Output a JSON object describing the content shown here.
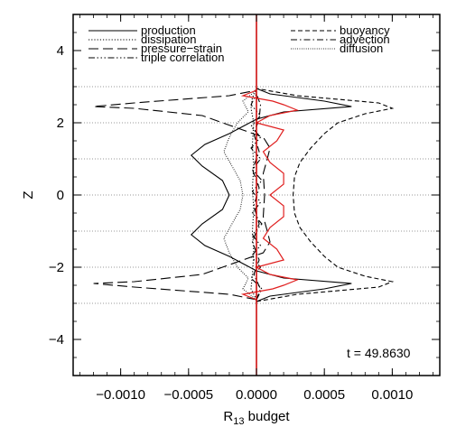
{
  "chart_data": {
    "type": "line",
    "xlabel_main": "R",
    "xlabel_sub": "13",
    "xlabel_rest": " budget",
    "ylabel": "Z",
    "xlim": [
      -0.00135,
      0.00135
    ],
    "ylim": [
      -5,
      5
    ],
    "xticks": [
      -0.001,
      -0.0005,
      0.0,
      0.0005,
      0.001
    ],
    "xtick_labels": [
      "−0.0010",
      "−0.0005",
      "0.0000",
      "0.0005",
      "0.0010"
    ],
    "yticks": [
      -4,
      -2,
      0,
      2,
      4
    ],
    "ytick_labels": [
      "−4",
      "−2",
      "0",
      "2",
      "4"
    ],
    "horizontal_dotted_gridlines_at_z": [
      -3,
      -2,
      -1,
      0,
      1,
      2,
      3
    ],
    "vertical_reference_line": {
      "x": 0.0,
      "color": "#cc0000"
    },
    "annotation": "t = 49.8630",
    "legend_left": [
      "production",
      "dissipation",
      "pressure−strain",
      "triple correlation"
    ],
    "legend_right": [
      "buoyancy",
      "advection",
      "diffusion"
    ],
    "series": [
      {
        "name": "production",
        "style": "solid",
        "color": "#000000",
        "z": [
          -2.95,
          -2.8,
          -2.6,
          -2.45,
          -2.3,
          -2.1,
          -1.9,
          -1.7,
          -1.4,
          -1.1,
          -0.8,
          -0.4,
          0,
          0.4,
          0.8,
          1.1,
          1.4,
          1.7,
          1.9,
          2.1,
          2.3,
          2.45,
          2.6,
          2.8,
          2.95
        ],
        "x": [
          0.0,
          0.0001,
          0.0005,
          0.0007,
          0.0002,
          0.0,
          -0.0001,
          -0.0002,
          -0.00038,
          -0.00048,
          -0.0004,
          -0.00025,
          -0.0002,
          -0.00025,
          -0.0004,
          -0.00048,
          -0.00038,
          -0.0002,
          -0.0001,
          0.0,
          0.0002,
          0.0007,
          0.0005,
          0.0001,
          0.0
        ]
      },
      {
        "name": "dissipation",
        "style": "dotted",
        "color": "#000000",
        "z": [
          -2.9,
          -2.6,
          -2.2,
          -1.6,
          -1.0,
          -0.4,
          0.2,
          0.8,
          1.4,
          2.0,
          2.4,
          2.7,
          2.9
        ],
        "x": [
          0.0,
          -4e-05,
          -3e-05,
          -2e-05,
          -3e-05,
          -2e-05,
          -3e-05,
          -2e-05,
          -3e-05,
          -2e-05,
          -4e-05,
          -3e-05,
          0.0
        ]
      },
      {
        "name": "pressure−strain",
        "style": "longdash",
        "color": "#000000",
        "z": [
          -2.9,
          -2.75,
          -2.55,
          -2.45,
          -2.4,
          -2.2,
          -2.0,
          -1.8,
          -1.6,
          -1.3,
          -1.0,
          -0.6,
          0,
          0.6,
          1.0,
          1.3,
          1.6,
          1.8,
          2.0,
          2.2,
          2.4,
          2.45,
          2.55,
          2.75,
          2.9
        ],
        "x": [
          0.0,
          -0.0002,
          -0.0009,
          -0.0012,
          -0.0009,
          -0.0004,
          -0.00025,
          -0.0001,
          5e-05,
          0.0001,
          8e-05,
          5e-05,
          6e-05,
          5e-05,
          8e-05,
          0.0001,
          5e-05,
          -0.0001,
          -0.00025,
          -0.0004,
          -0.0009,
          -0.0012,
          -0.0009,
          -0.0002,
          0.0
        ]
      },
      {
        "name": "triple correlation",
        "style": "dashdotdotdot",
        "color": "#000000",
        "z": [
          -2.9,
          -2.6,
          -2.3,
          -2.0,
          -1.7,
          -1.4,
          -1.1,
          -0.8,
          -0.5,
          -0.2,
          0.1,
          0.4,
          0.7,
          1.0,
          1.3,
          1.6,
          1.9,
          2.2,
          2.5,
          2.8
        ],
        "x": [
          0.0,
          4e-05,
          -4e-05,
          3e-05,
          -4e-05,
          3e-05,
          -3e-05,
          4e-05,
          -3e-05,
          3e-05,
          -3e-05,
          4e-05,
          -3e-05,
          3e-05,
          -4e-05,
          3e-05,
          -4e-05,
          3e-05,
          -4e-05,
          0.0
        ]
      },
      {
        "name": "buoyancy",
        "style": "shortdash",
        "color": "#000000",
        "z": [
          -2.95,
          -2.75,
          -2.55,
          -2.4,
          -2.25,
          -2.0,
          -1.7,
          -1.3,
          -0.9,
          -0.5,
          0,
          0.5,
          0.9,
          1.3,
          1.7,
          2.0,
          2.25,
          2.4,
          2.55,
          2.75,
          2.95
        ],
        "x": [
          0.0,
          0.0003,
          0.0009,
          0.001,
          0.0008,
          0.0006,
          0.0005,
          0.0004,
          0.00032,
          0.00028,
          0.00027,
          0.00028,
          0.00032,
          0.0004,
          0.0005,
          0.0006,
          0.0008,
          0.001,
          0.0009,
          0.0003,
          0.0
        ]
      },
      {
        "name": "advection",
        "style": "dashdot",
        "color": "#000000",
        "z": [
          -2.9,
          -2.6,
          -2.2,
          -1.8,
          -1.3,
          -0.8,
          -0.3,
          0.2,
          0.7,
          1.2,
          1.7,
          2.1,
          2.5,
          2.8
        ],
        "x": [
          0.0,
          3e-05,
          -2e-05,
          2e-05,
          -3e-05,
          2e-05,
          -2e-05,
          2e-05,
          -3e-05,
          2e-05,
          -2e-05,
          2e-05,
          3e-05,
          0.0
        ]
      },
      {
        "name": "diffusion",
        "style": "finedot",
        "color": "#000000",
        "z": [
          -2.9,
          -2.6,
          -2.3,
          -2.0,
          -1.6,
          -1.2,
          -0.8,
          -0.4,
          0,
          0.4,
          0.8,
          1.2,
          1.6,
          2.0,
          2.3,
          2.6,
          2.9
        ],
        "x": [
          0.0,
          -0.0001,
          -6e-05,
          -0.00014,
          -0.0002,
          -0.00024,
          -0.00018,
          -0.00012,
          -0.0001,
          -0.00012,
          -0.00018,
          -0.00024,
          -0.0002,
          -0.00014,
          -6e-05,
          -0.0001,
          0.0
        ]
      },
      {
        "style": "solid",
        "color": "#e02020",
        "z": [
          -2.9,
          -2.75,
          -2.6,
          -2.5,
          -2.35,
          -2.2,
          -2.0,
          -1.8,
          -1.5,
          -1.2,
          -0.9,
          -0.6,
          -0.3,
          0,
          0.3,
          0.6,
          0.9,
          1.2,
          1.5,
          1.8,
          2.0,
          2.2,
          2.35,
          2.5,
          2.6,
          2.75,
          2.9
        ],
        "x": [
          0.0,
          -0.0001,
          0.00012,
          0.0002,
          0.0003,
          0.0001,
          0.0,
          0.0002,
          0.00015,
          5e-05,
          0.0001,
          0.0002,
          0.0002,
          0.0001,
          0.0002,
          0.0002,
          0.0001,
          5e-05,
          0.00015,
          0.0002,
          0.0,
          0.0001,
          0.0003,
          0.0002,
          0.00012,
          -0.0001,
          0.0
        ]
      }
    ]
  }
}
